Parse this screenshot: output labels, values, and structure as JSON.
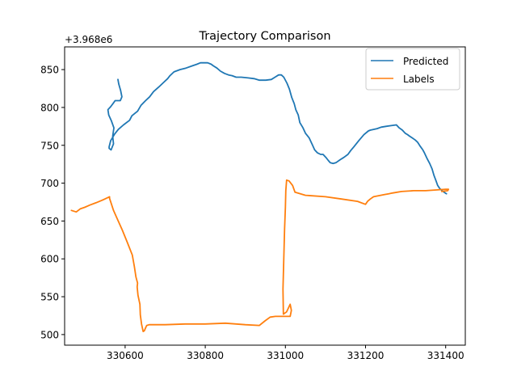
{
  "chart_data": {
    "type": "line",
    "title": "Trajectory Comparison",
    "xlabel": "",
    "ylabel": "",
    "y_offset_label": "+3.968e6",
    "xlim": [
      330449,
      331449
    ],
    "ylim": [
      486,
      880
    ],
    "x_ticks": [
      330600,
      330800,
      331000,
      331200,
      331400
    ],
    "x_tick_labels": [
      "330600",
      "330800",
      "331000",
      "331200",
      "331400"
    ],
    "y_ticks": [
      500,
      550,
      600,
      650,
      700,
      750,
      800,
      850
    ],
    "y_tick_labels": [
      "500",
      "550",
      "600",
      "650",
      "700",
      "750",
      "800",
      "850"
    ],
    "grid": false,
    "legend_position": "top-right",
    "series": [
      {
        "name": "Predicted",
        "color": "#1f77b4",
        "x": [
          330582,
          330584,
          330589,
          330592,
          330588,
          330575,
          330571,
          330564,
          330557,
          330559,
          330566,
          330572,
          330569,
          330571,
          330565,
          330560,
          330560,
          330564,
          330574,
          330583,
          330596,
          330611,
          330617,
          330631,
          330640,
          330651,
          330661,
          330671,
          330684,
          330696,
          330706,
          330712,
          330722,
          330737,
          330752,
          330768,
          330779,
          330788,
          330799,
          330806,
          330815,
          330820,
          330829,
          330838,
          330848,
          330858,
          330867,
          330877,
          330890,
          330907,
          330922,
          330935,
          330951,
          330965,
          330974,
          330983,
          330990,
          330996,
          331004,
          331010,
          331016,
          331022,
          331026,
          331032,
          331036,
          331044,
          331050,
          331059,
          331067,
          331073,
          331080,
          331088,
          331094,
          331101,
          331107,
          331112,
          331119,
          331126,
          331137,
          331146,
          331156,
          331163,
          331171,
          331183,
          331196,
          331207,
          331212,
          331220,
          331229,
          331239,
          331251,
          331264,
          331277,
          331284,
          331292,
          331299,
          331305,
          331310,
          331316,
          331324,
          331330,
          331336,
          331343,
          331347,
          331354,
          331360,
          331366,
          331371,
          331376,
          331380,
          331385,
          331391,
          331396,
          331402
        ],
        "y": [
          837,
          831,
          822,
          814,
          809,
          809,
          806,
          801,
          797,
          790,
          782,
          773,
          762,
          752,
          744,
          746,
          748,
          756,
          765,
          771,
          777,
          783,
          789,
          795,
          803,
          809,
          814,
          821,
          827,
          833,
          838,
          842,
          847,
          850,
          852,
          855,
          857,
          859,
          859,
          859,
          857,
          855,
          852,
          848,
          845,
          843,
          842,
          840,
          840,
          839,
          838,
          836,
          836,
          837,
          840,
          843,
          843,
          840,
          832,
          824,
          813,
          805,
          797,
          790,
          780,
          773,
          766,
          760,
          751,
          744,
          740,
          738,
          738,
          734,
          730,
          727,
          726,
          727,
          731,
          734,
          738,
          743,
          748,
          756,
          764,
          769,
          770,
          771,
          772,
          774,
          775,
          776,
          777,
          773,
          770,
          766,
          764,
          762,
          760,
          757,
          754,
          749,
          744,
          740,
          732,
          726,
          719,
          710,
          703,
          697,
          693,
          690,
          688,
          686
        ]
      },
      {
        "name": "Labels",
        "color": "#ff7f0e",
        "x": [
          330466,
          330478,
          330488,
          330499,
          330512,
          330527,
          330541,
          330553,
          330561,
          330561,
          330571,
          330581,
          330593,
          330606,
          330618,
          330623,
          330627,
          330631,
          330630,
          330632,
          330637,
          330638,
          330641,
          330645,
          330648,
          330652,
          330654,
          330660,
          330700,
          330750,
          330800,
          330850,
          330900,
          330935,
          330949,
          330962,
          330975,
          330991,
          331012,
          331015,
          331012,
          331003,
          330995,
          330994,
          330996,
          330998,
          331000,
          331001,
          331003,
          331009,
          331018,
          331024,
          331050,
          331100,
          331140,
          331180,
          331200,
          331205,
          331212,
          331220,
          331248,
          331258,
          331267,
          331290,
          331320,
          331350,
          331376,
          331400,
          331407,
          331405,
          331390
        ],
        "y": [
          664,
          662,
          666,
          668,
          671,
          674,
          677,
          680,
          682,
          680,
          664,
          652,
          638,
          621,
          605,
          590,
          576,
          568,
          563,
          552,
          540,
          526,
          514,
          504,
          505,
          510,
          512,
          513,
          513,
          514,
          514,
          515,
          513,
          512,
          518,
          523,
          524,
          524,
          524,
          532,
          540,
          530,
          527,
          560,
          600,
          640,
          668,
          690,
          704,
          703,
          697,
          688,
          684,
          682,
          679,
          676,
          672,
          676,
          679,
          682,
          685,
          686,
          687,
          689,
          690,
          690,
          691,
          692,
          692,
          690,
          689
        ]
      }
    ]
  }
}
